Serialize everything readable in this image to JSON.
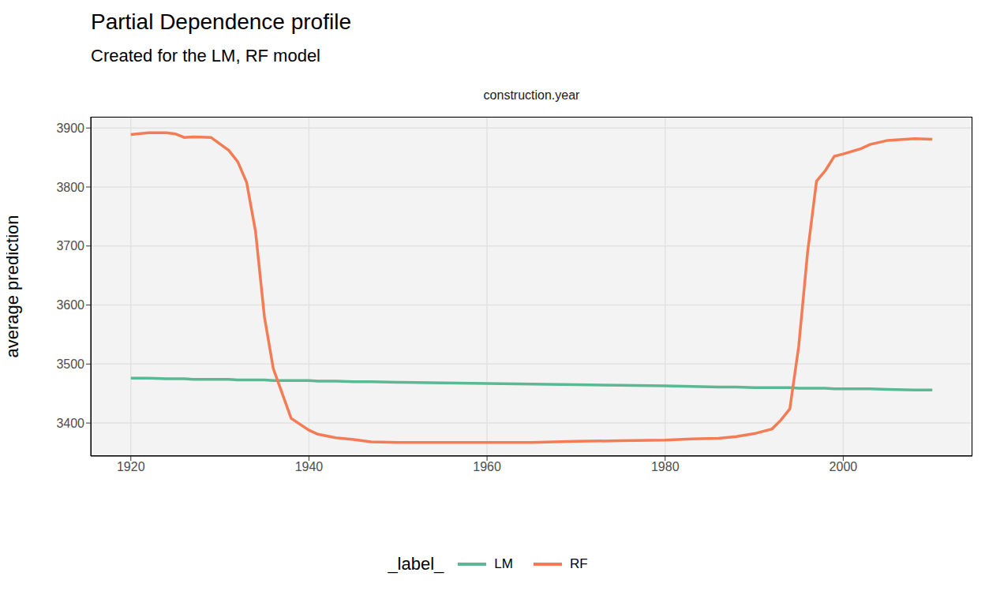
{
  "chart_data": {
    "type": "line",
    "title": "Partial Dependence profile",
    "subtitle": "Created for the LM, RF model",
    "panel_label": "construction.year",
    "y_label": "average prediction",
    "legend_title": "_label_",
    "legend": "bottom",
    "grid": true,
    "x": [
      1920,
      1922,
      1924,
      1925,
      1926,
      1927,
      1929,
      1931,
      1932,
      1933,
      1934,
      1935,
      1936,
      1938,
      1940,
      1941,
      1943,
      1945,
      1947,
      1950,
      1955,
      1960,
      1965,
      1970,
      1975,
      1980,
      1983,
      1986,
      1988,
      1990,
      1992,
      1993,
      1994,
      1995,
      1996,
      1997,
      1998,
      1999,
      2000,
      2002,
      2003,
      2005,
      2008,
      2010
    ],
    "series": [
      {
        "name": "LM",
        "color": "#5ab895",
        "values": [
          3476,
          3476,
          3475,
          3475,
          3475,
          3474,
          3474,
          3474,
          3473,
          3473,
          3473,
          3473,
          3472,
          3472,
          3472,
          3471,
          3471,
          3470,
          3470,
          3469,
          3468,
          3467,
          3466,
          3465,
          3464,
          3463,
          3462,
          3461,
          3461,
          3460,
          3460,
          3460,
          3460,
          3459,
          3459,
          3459,
          3459,
          3458,
          3458,
          3458,
          3458,
          3457,
          3456,
          3456
        ]
      },
      {
        "name": "RF",
        "color": "#f47c55",
        "values": [
          3889,
          3892,
          3892,
          3890,
          3884,
          3885,
          3884,
          3862,
          3843,
          3808,
          3725,
          3580,
          3492,
          3408,
          3388,
          3381,
          3375,
          3372,
          3368,
          3367,
          3367,
          3367,
          3367,
          3369,
          3370,
          3371,
          3373,
          3374,
          3377,
          3382,
          3390,
          3405,
          3424,
          3530,
          3690,
          3810,
          3828,
          3852,
          3856,
          3865,
          3872,
          3879,
          3882,
          3881
        ]
      }
    ],
    "xlim": [
      1915.5,
      2014.5
    ],
    "xticks": [
      1920,
      1940,
      1960,
      1980,
      2000
    ],
    "ylim": [
      3344,
      3919
    ],
    "yticks": [
      3400,
      3500,
      3600,
      3700,
      3800,
      3900
    ]
  }
}
